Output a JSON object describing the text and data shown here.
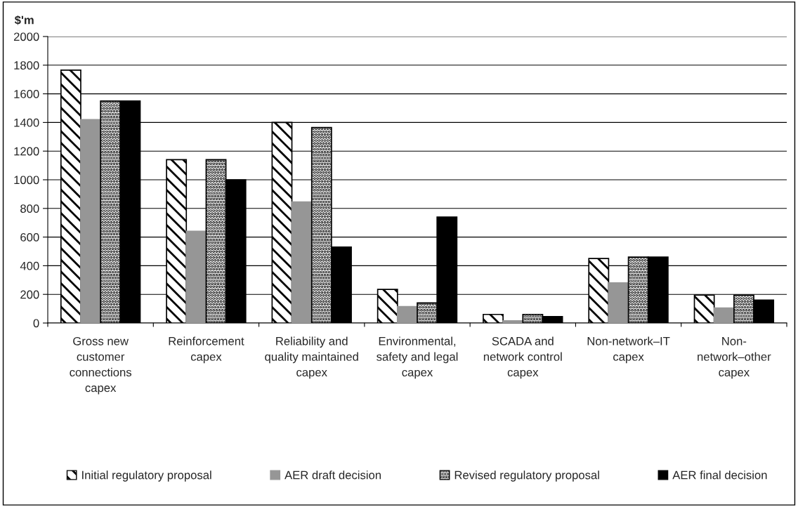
{
  "chart_data": {
    "type": "bar",
    "ylabel": "$'m",
    "categories": [
      "Gross new\ncustomer\nconnections\ncapex",
      "Reinforcement\ncapex",
      "Reliability and\nquality maintained\ncapex",
      "Environmental,\nsafety and legal\ncapex",
      "SCADA and\nnetwork control\ncapex",
      "Non-network–IT\ncapex",
      "Non-\nnetwork–other\ncapex"
    ],
    "series": [
      {
        "name": "Initial regulatory proposal",
        "color": "#000000",
        "values": [
          1765,
          1140,
          1400,
          235,
          60,
          450,
          195
        ]
      },
      {
        "name": "AER draft decision",
        "color": "#969696",
        "values": [
          1420,
          640,
          845,
          115,
          15,
          280,
          105
        ]
      },
      {
        "name": "Revised regulatory proposal",
        "color": "#000000",
        "values": [
          1550,
          1140,
          1365,
          140,
          60,
          460,
          195
        ]
      },
      {
        "name": "AER final decision",
        "color": "#000000",
        "values": [
          1550,
          1000,
          530,
          740,
          45,
          460,
          160
        ]
      }
    ],
    "ylim": [
      0,
      2000
    ],
    "yticks": [
      0,
      200,
      400,
      600,
      800,
      1000,
      1200,
      1400,
      1600,
      1800,
      2000
    ],
    "grid": "y",
    "legend": "bottom"
  }
}
